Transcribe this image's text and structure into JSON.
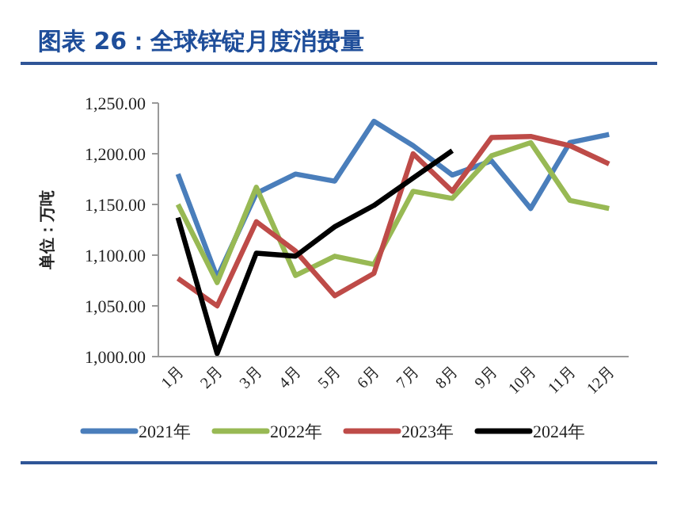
{
  "chart_data": {
    "type": "line",
    "title": "图表 26：全球锌锭月度消费量",
    "ylabel": "单位：万吨",
    "categories": [
      "1月",
      "2月",
      "3月",
      "4月",
      "5月",
      "6月",
      "7月",
      "8月",
      "9月",
      "10月",
      "11月",
      "12月"
    ],
    "series": [
      {
        "name": "2021年",
        "color": "#4a7ebb",
        "values": [
          1180,
          1078,
          1161,
          1180,
          1173,
          1232,
          1208,
          1179,
          1193,
          1146,
          1211,
          1219
        ]
      },
      {
        "name": "2022年",
        "color": "#98b954",
        "values": [
          1150,
          1073,
          1167,
          1080,
          1099,
          1091,
          1163,
          1156,
          1198,
          1211,
          1154,
          1146
        ]
      },
      {
        "name": "2023年",
        "color": "#be4b48",
        "values": [
          1077,
          1050,
          1133,
          1104,
          1060,
          1082,
          1200,
          1163,
          1216,
          1217,
          1208,
          1190
        ]
      },
      {
        "name": "2024年",
        "color": "#000000",
        "values": [
          1137,
          1003,
          1102,
          1099,
          1128,
          1149,
          1176,
          1203,
          null,
          null,
          null,
          null
        ]
      }
    ],
    "ylim": [
      1000,
      1250
    ],
    "yticks": [
      {
        "value": 1000,
        "label": "1,000.00"
      },
      {
        "value": 1050,
        "label": "1,050.00"
      },
      {
        "value": 1100,
        "label": "1,100.00"
      },
      {
        "value": 1150,
        "label": "1,150.00"
      },
      {
        "value": 1200,
        "label": "1,200.00"
      },
      {
        "value": 1250,
        "label": "1,250.00"
      }
    ],
    "grid": false,
    "legend": "bottom",
    "marker": "none",
    "line_style": "solid"
  }
}
